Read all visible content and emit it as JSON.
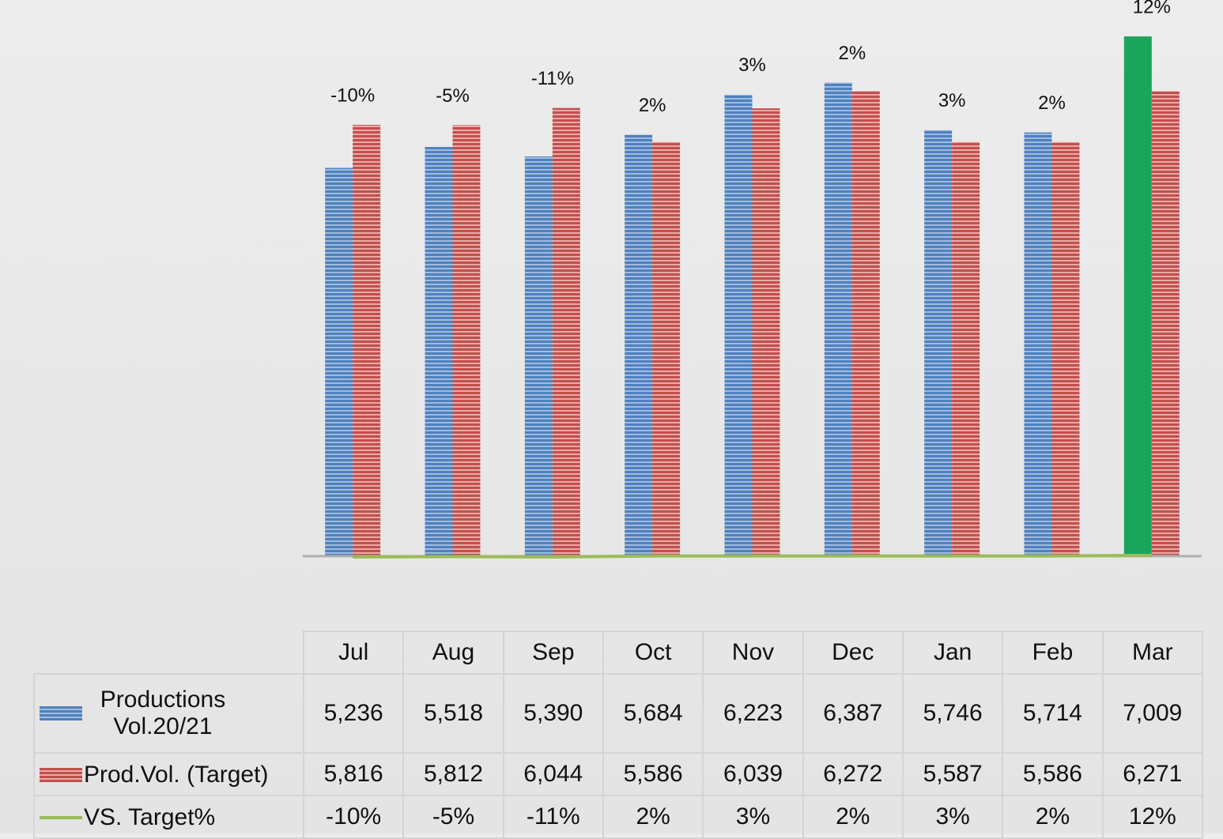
{
  "chart_data": {
    "type": "bar",
    "categories": [
      "Jul",
      "Aug",
      "Sep",
      "Oct",
      "Nov",
      "Dec",
      "Jan",
      "Feb",
      "Mar"
    ],
    "series": [
      {
        "name": "Productions Vol.20/21",
        "color": "#4f81bd",
        "type": "bar",
        "values": [
          5236,
          5518,
          5390,
          5684,
          6223,
          6387,
          5746,
          5714,
          7009
        ],
        "value_labels": [
          "5,236",
          "5,518",
          "5,390",
          "5,684",
          "6,223",
          "6,387",
          "5,746",
          "5,714",
          "7,009"
        ]
      },
      {
        "name": "Prod.Vol. (Target)",
        "color": "#c0504d",
        "type": "bar",
        "values": [
          5816,
          5812,
          6044,
          5586,
          6039,
          6272,
          5587,
          5586,
          6271
        ],
        "value_labels": [
          "5,816",
          "5,812",
          "6,044",
          "5,586",
          "6,039",
          "6,272",
          "5,587",
          "5,586",
          "6,271"
        ]
      },
      {
        "name": "VS. Target%",
        "color": "#9bbb59",
        "type": "line",
        "values": [
          -10,
          -5,
          -11,
          2,
          3,
          2,
          3,
          2,
          12
        ],
        "value_labels": [
          "-10%",
          "-5%",
          "-11%",
          "2%",
          "3%",
          "2%",
          "3%",
          "2%",
          "12%"
        ]
      }
    ],
    "highlight": {
      "category": "Mar",
      "color": "#1aa55c"
    },
    "ylim": [
      0,
      7500
    ],
    "data_table": true
  }
}
